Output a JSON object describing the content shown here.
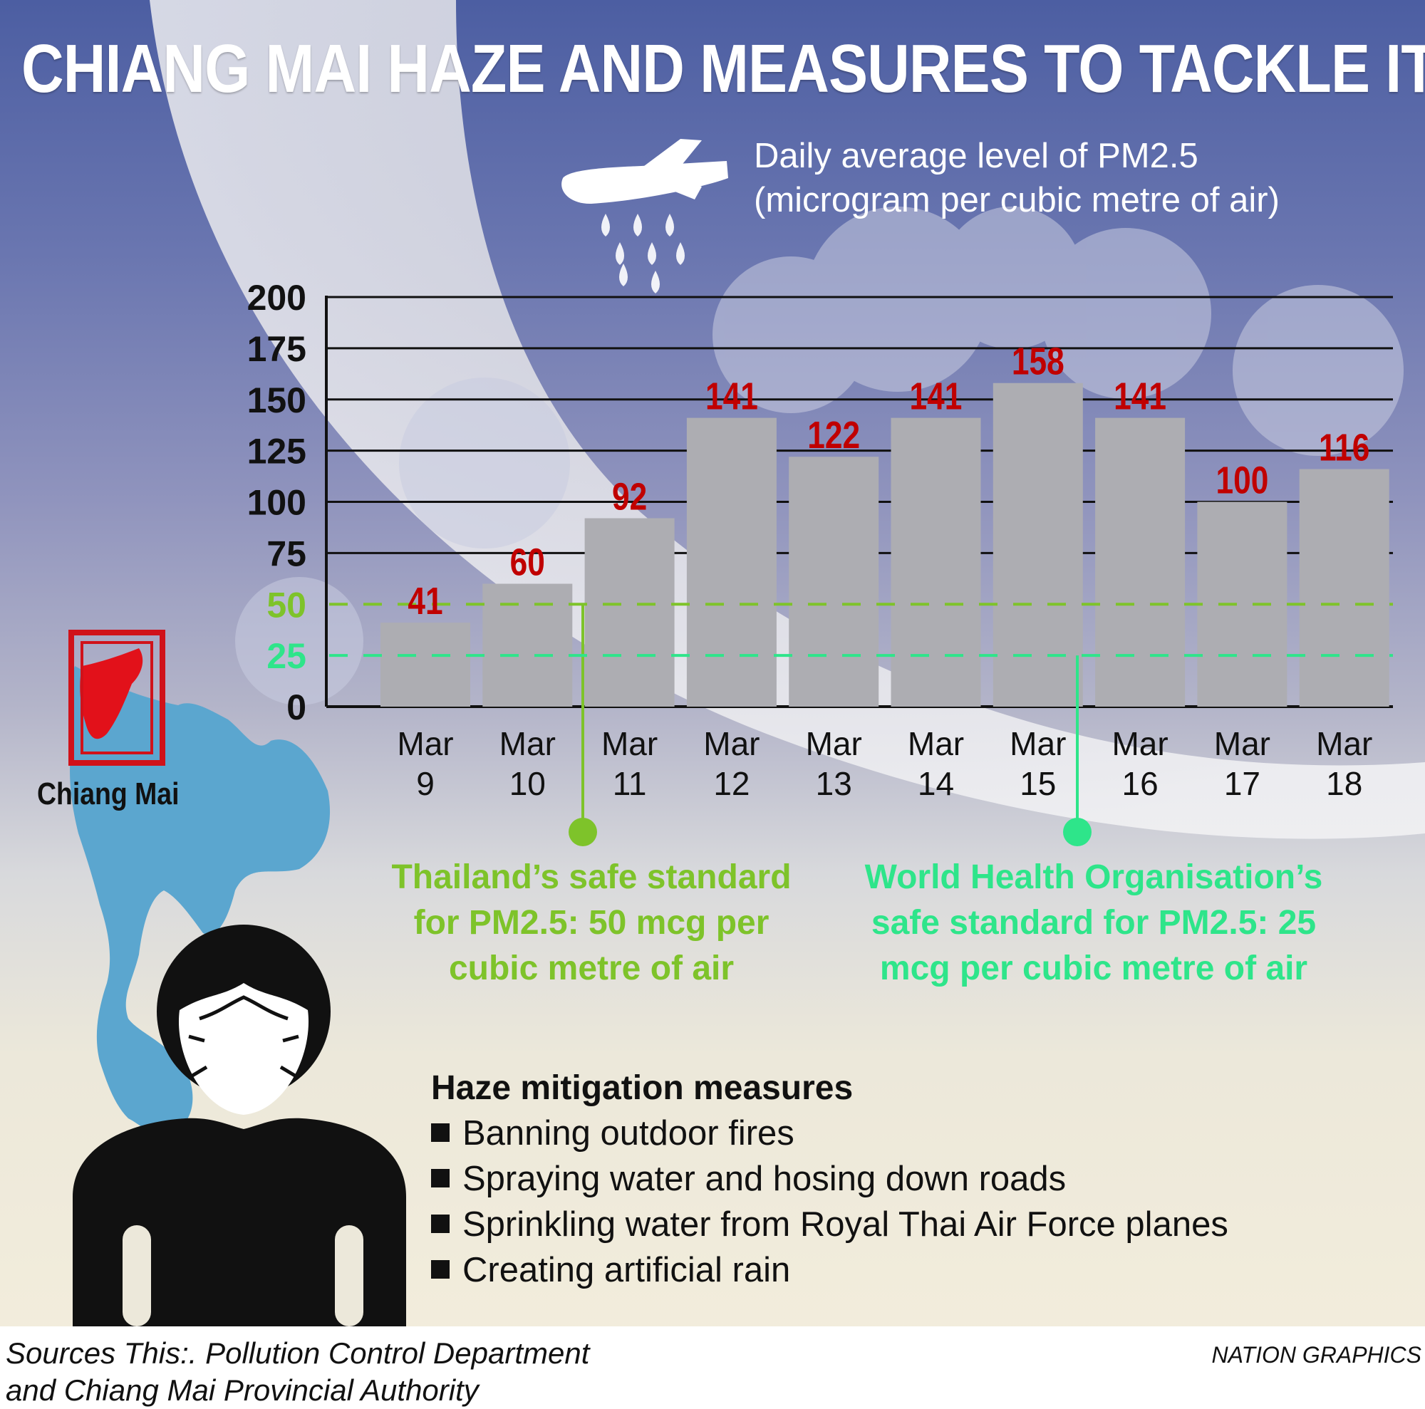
{
  "title": "CHIANG MAI HAZE AND MEASURES TO TACKLE IT",
  "subtitle_line1": "Daily average level of PM2.5",
  "subtitle_line2": "(microgram per cubic metre of air)",
  "chart_data": {
    "type": "bar",
    "categories_top": [
      "Mar",
      "Mar",
      "Mar",
      "Mar",
      "Mar",
      "Mar",
      "Mar",
      "Mar",
      "Mar",
      "Mar"
    ],
    "categories_bottom": [
      "9",
      "10",
      "11",
      "12",
      "13",
      "14",
      "15",
      "16",
      "17",
      "18"
    ],
    "values": [
      41,
      60,
      92,
      141,
      122,
      141,
      158,
      141,
      100,
      116
    ],
    "value_labels": [
      "41",
      "60",
      "92",
      "141",
      "122",
      "141",
      "158",
      "141",
      "100",
      "116"
    ],
    "yticks": [
      "0",
      "25",
      "50",
      "75",
      "100",
      "125",
      "150",
      "175",
      "200"
    ],
    "ylim": [
      0,
      200
    ],
    "grid": true,
    "reference_lines": [
      {
        "value": 50,
        "color": "#7ec32a"
      },
      {
        "value": 25,
        "color": "#2ee58a"
      }
    ],
    "bar_color": "#c00000",
    "value_label_color": "#c00000"
  },
  "note_thai": "Thailand’s safe standard for PM2.5: 50 mcg per cubic metre of air",
  "note_who": "World Health Organisation’s safe standard for PM2.5: 25 mcg per cubic metre of air",
  "colors": {
    "thai_standard": "#7ec32a",
    "who_standard": "#2ee58a",
    "map": "#5ba6cf",
    "chiang_mai": "#e2111a"
  },
  "map_label": "Chiang Mai",
  "measures": {
    "title": "Haze mitigation measures",
    "items": [
      "Banning outdoor fires",
      "Spraying water and hosing down roads",
      "Sprinkling water from Royal Thai Air Force planes",
      "Creating artificial rain"
    ]
  },
  "sources_line1": "Sources This:. Pollution Control Department",
  "sources_line2": "and Chiang Mai Provincial Authority",
  "credit": "NATION GRAPHICS",
  "icons": [
    "plane-icon",
    "water-drop-icon",
    "thailand-map-icon",
    "masked-person-icon"
  ]
}
